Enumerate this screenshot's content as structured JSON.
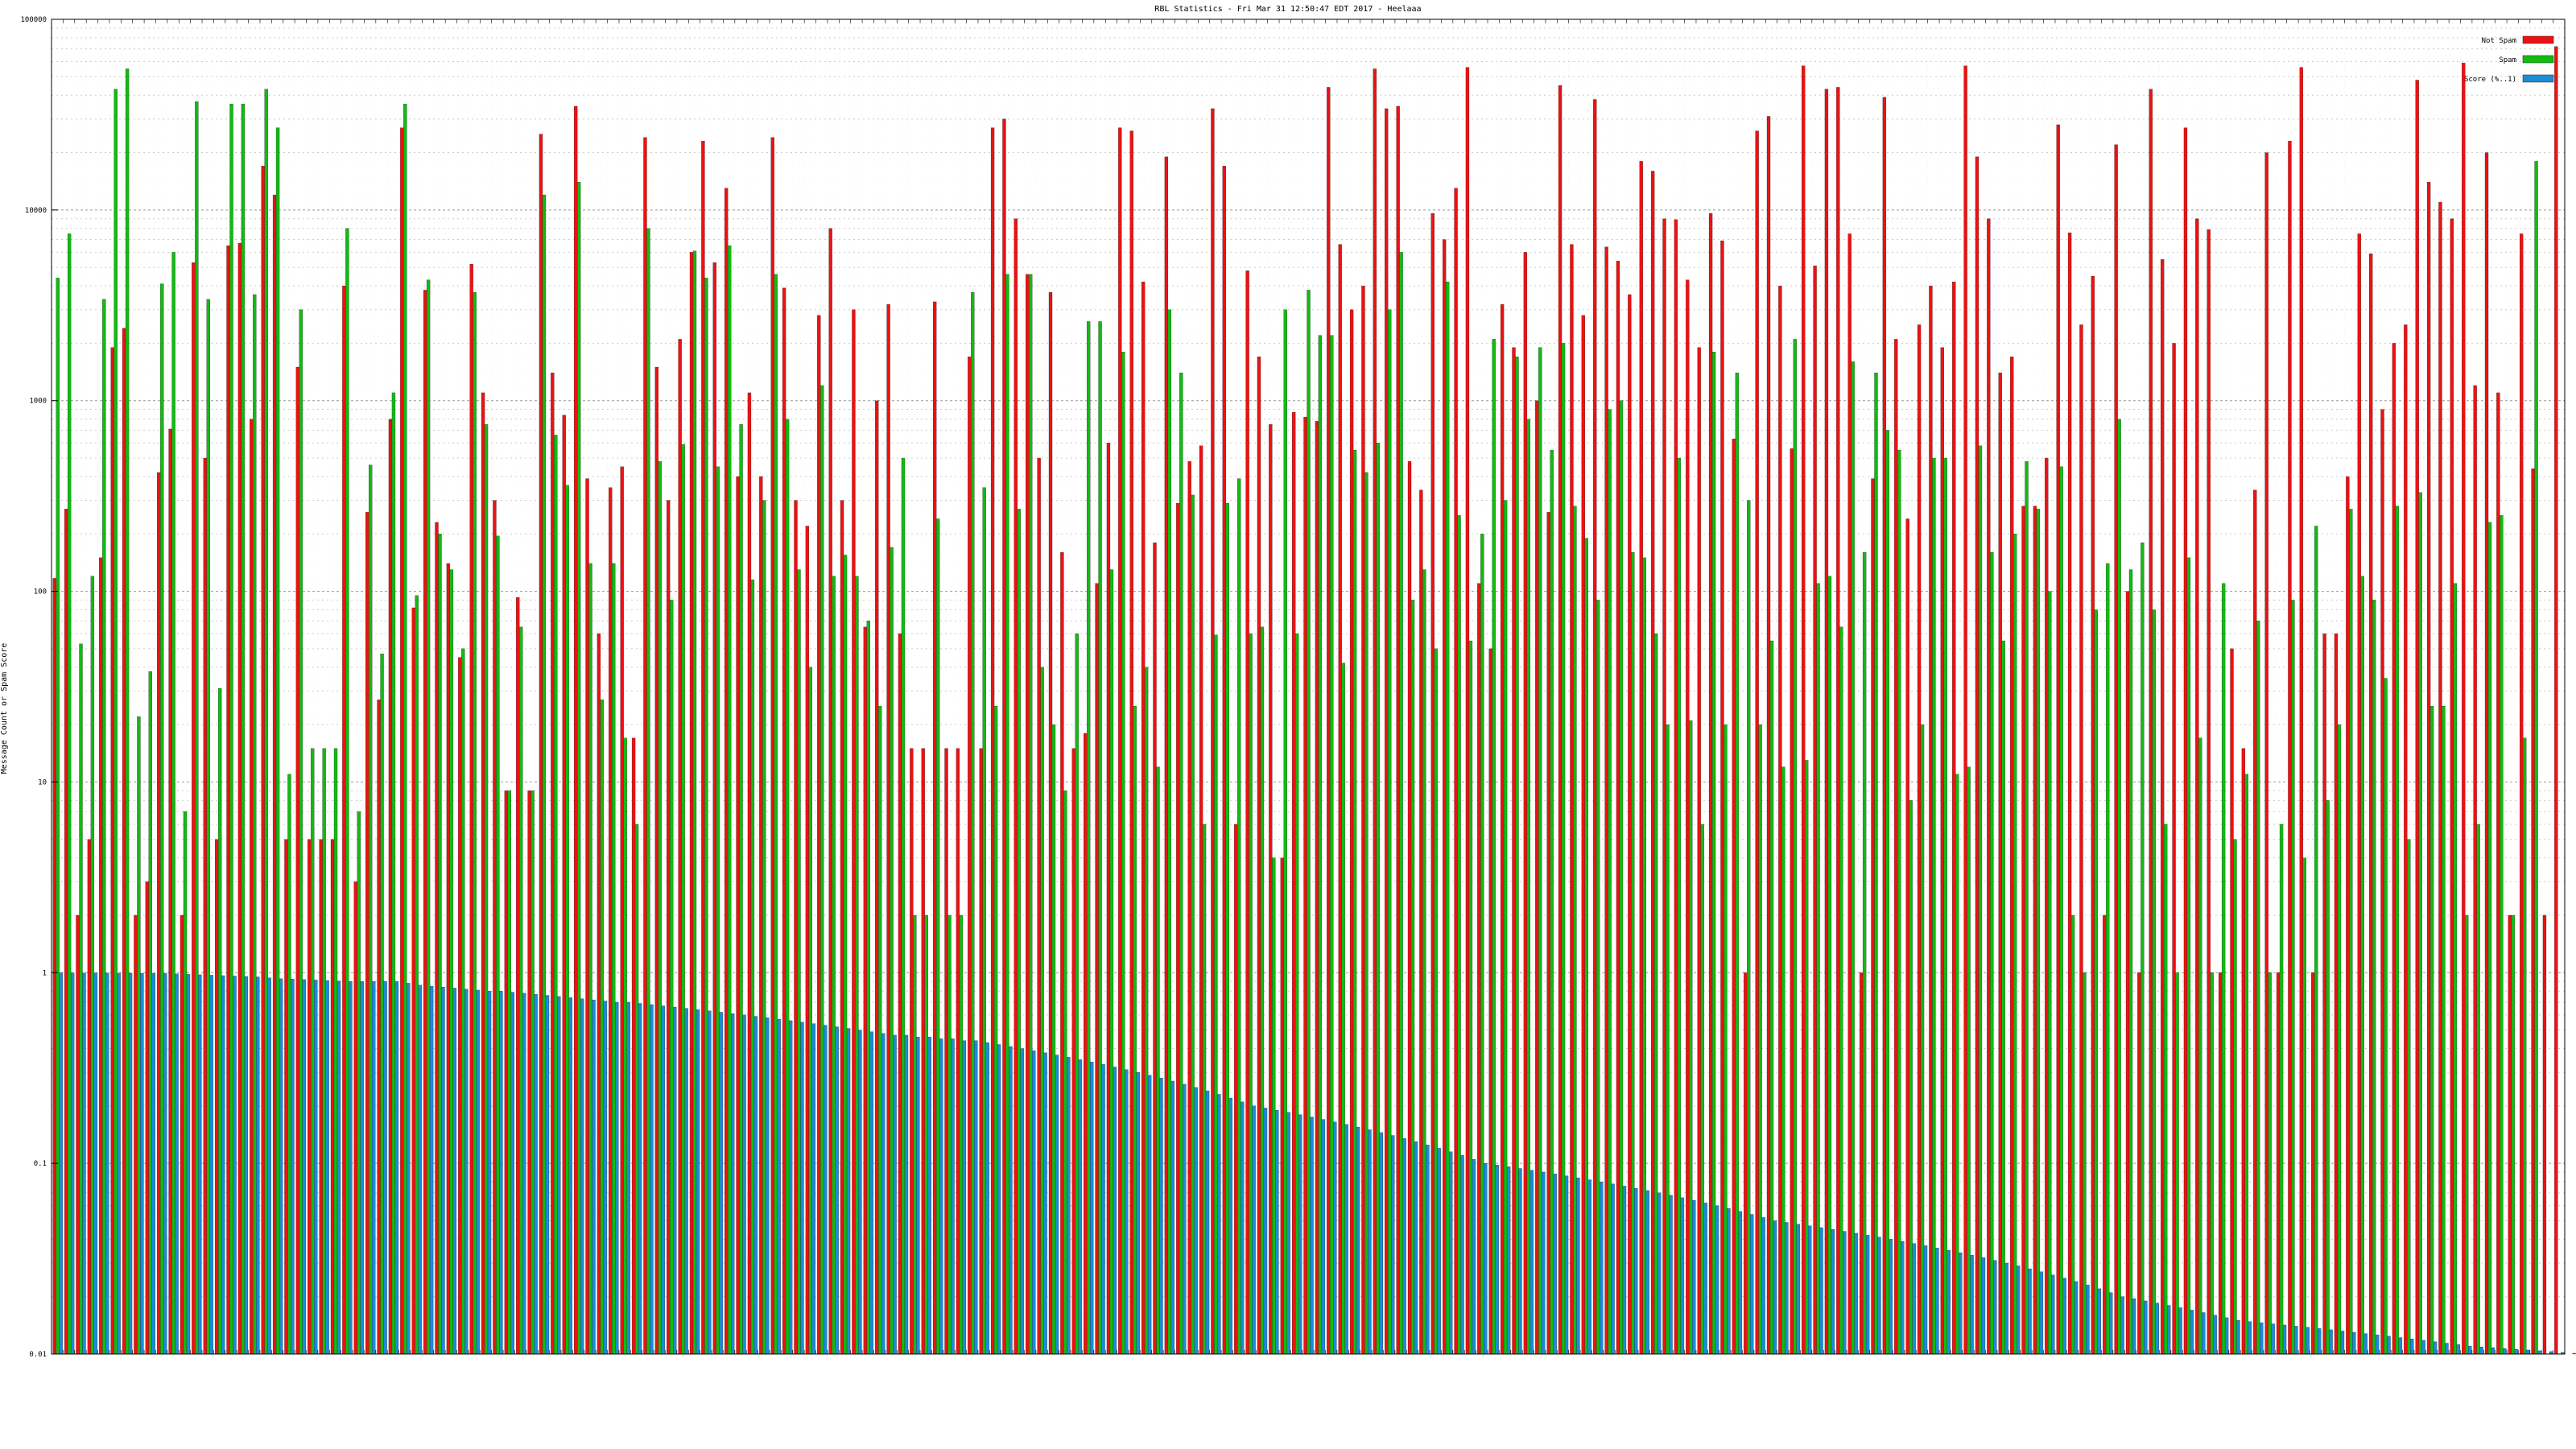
{
  "chart_data": {
    "type": "bar",
    "title": "RBL Statistics - Fri Mar 31 12:50:47 EDT 2017 - Heelaaa",
    "ylabel": "Message Count or Spam Score",
    "yscale": "log",
    "ylim": [
      0.01,
      100000
    ],
    "yticks": [
      0.01,
      0.1,
      1,
      10,
      100,
      1000,
      10000,
      100000
    ],
    "ytick_labels": [
      "0.01",
      "0.1",
      "1",
      "10",
      "100",
      "1000",
      "10000",
      "100000"
    ],
    "grid": true,
    "legend_position": "top-right",
    "colors": {
      "Not Spam": "#ee1111",
      "Spam": "#11bb11",
      "Score (%..1)": "#1a8cd8"
    },
    "series": [
      {
        "name": "Not Spam",
        "values": [
          117,
          270,
          2,
          5,
          150,
          1900,
          2400,
          2,
          3,
          420,
          710,
          2,
          5300,
          500,
          5,
          6500,
          6700,
          800,
          17000,
          12000,
          5,
          1500,
          5,
          5,
          5,
          4000,
          3,
          260,
          27,
          800,
          27000,
          82,
          3800,
          230,
          140,
          45,
          5200,
          1100,
          300,
          9,
          93,
          9,
          25000,
          1400,
          840,
          35000,
          390,
          60,
          350,
          450,
          17,
          24000,
          1500,
          300,
          2100,
          6000,
          23000,
          5300,
          13000,
          400,
          1100,
          400,
          24000,
          3900,
          300,
          220,
          2800,
          8000,
          300,
          3000,
          65,
          1000,
          3200,
          60,
          15,
          15,
          3300,
          15,
          15,
          1700,
          15,
          27000,
          30000,
          9000,
          4600,
          500,
          3700,
          160,
          15,
          18,
          110,
          600,
          27000,
          26000,
          4200,
          180,
          19000,
          290,
          480,
          580,
          34000,
          17000,
          6,
          4800,
          1700,
          750,
          4,
          870,
          820,
          780,
          44000,
          6600,
          3000,
          4000,
          55000,
          34000,
          35000,
          480,
          340,
          9600,
          7000,
          13000,
          56000,
          110,
          50,
          3200,
          1900,
          6000,
          1000,
          260,
          45000,
          6600,
          2800,
          38000,
          6400,
          5400,
          3600,
          18000,
          16000,
          9000,
          8900,
          4300,
          1900,
          9600,
          6900,
          630,
          1,
          26000,
          31000,
          4000,
          560,
          57000,
          5100,
          43000,
          44000,
          7500,
          1,
          390,
          39000,
          2100,
          240,
          2500,
          4000,
          1900,
          4200,
          57000,
          19000,
          9000,
          1400,
          1700,
          280,
          280,
          500,
          28000,
          7600,
          2500,
          4500,
          2,
          22000,
          100,
          1,
          43000,
          5500,
          2000,
          27000,
          9000,
          7900,
          1,
          50,
          15,
          340,
          20000,
          1,
          23000,
          56000,
          1,
          60,
          60,
          400,
          7500,
          5900,
          900,
          2000,
          2500,
          48000,
          14000,
          11000,
          9000,
          59000,
          1200,
          20000,
          1100,
          2,
          7500,
          440,
          2,
          72000
        ]
      },
      {
        "name": "Spam",
        "values": [
          4400,
          7500,
          53,
          120,
          3400,
          43000,
          55000,
          22,
          38,
          4100,
          6000,
          7,
          37000,
          3400,
          31,
          36000,
          36000,
          3600,
          43000,
          27000,
          11,
          3000,
          15,
          15,
          15,
          8000,
          7,
          460,
          47,
          1100,
          36000,
          95,
          4300,
          200,
          130,
          50,
          3700,
          750,
          195,
          9,
          65,
          9,
          12000,
          660,
          360,
          14000,
          140,
          27,
          140,
          17,
          6,
          8000,
          480,
          90,
          590,
          6100,
          4400,
          450,
          6500,
          750,
          115,
          300,
          4600,
          800,
          130,
          40,
          1200,
          120,
          155,
          120,
          70,
          25,
          170,
          500,
          2,
          2,
          240,
          2,
          2,
          3700,
          350,
          25,
          4600,
          270,
          4600,
          40,
          20,
          9,
          60,
          2600,
          2600,
          130,
          1800,
          25,
          40,
          12,
          3000,
          1400,
          320,
          6,
          59,
          290,
          390,
          60,
          65,
          4,
          3000,
          60,
          3800,
          2200,
          2200,
          42,
          550,
          420,
          600,
          3000,
          6000,
          90,
          130,
          50,
          4200,
          250,
          55,
          200,
          2100,
          300,
          1700,
          800,
          1900,
          550,
          2000,
          280,
          190,
          90,
          900,
          1000,
          160,
          150,
          60,
          20,
          500,
          21,
          6,
          1800,
          20,
          1400,
          300,
          20,
          55,
          12,
          2100,
          13,
          110,
          120,
          65,
          1600,
          160,
          1400,
          700,
          550,
          8,
          20,
          500,
          500,
          11,
          12,
          580,
          160,
          55,
          200,
          480,
          270,
          100,
          450,
          2,
          1,
          80,
          140,
          800,
          130,
          180,
          80,
          6,
          1,
          150,
          17,
          1,
          110,
          5,
          11,
          70,
          1,
          6,
          90,
          4,
          220,
          8,
          20,
          270,
          120,
          90,
          35,
          280,
          5,
          330,
          25,
          25,
          110,
          2,
          6,
          230,
          250,
          2,
          17,
          18000
        ]
      },
      {
        "name": "Score (%..1)",
        "values": [
          0.999,
          0.998,
          0.997,
          0.996,
          0.995,
          0.994,
          0.993,
          0.992,
          0.991,
          0.99,
          0.985,
          0.98,
          0.975,
          0.97,
          0.965,
          0.96,
          0.955,
          0.95,
          0.94,
          0.93,
          0.925,
          0.92,
          0.915,
          0.91,
          0.905,
          0.9,
          0.9,
          0.9,
          0.9,
          0.9,
          0.88,
          0.86,
          0.85,
          0.84,
          0.83,
          0.82,
          0.81,
          0.8,
          0.8,
          0.79,
          0.78,
          0.77,
          0.76,
          0.75,
          0.74,
          0.73,
          0.72,
          0.71,
          0.7,
          0.7,
          0.69,
          0.68,
          0.67,
          0.66,
          0.65,
          0.64,
          0.63,
          0.62,
          0.61,
          0.6,
          0.59,
          0.58,
          0.57,
          0.56,
          0.55,
          0.54,
          0.53,
          0.52,
          0.51,
          0.5,
          0.49,
          0.48,
          0.47,
          0.47,
          0.46,
          0.46,
          0.45,
          0.45,
          0.44,
          0.44,
          0.43,
          0.42,
          0.41,
          0.4,
          0.39,
          0.38,
          0.37,
          0.36,
          0.35,
          0.34,
          0.33,
          0.32,
          0.31,
          0.3,
          0.29,
          0.28,
          0.27,
          0.26,
          0.25,
          0.24,
          0.23,
          0.22,
          0.21,
          0.2,
          0.195,
          0.19,
          0.185,
          0.18,
          0.175,
          0.17,
          0.165,
          0.16,
          0.155,
          0.15,
          0.145,
          0.14,
          0.135,
          0.13,
          0.125,
          0.12,
          0.115,
          0.11,
          0.105,
          0.1,
          0.098,
          0.096,
          0.094,
          0.092,
          0.09,
          0.088,
          0.086,
          0.084,
          0.082,
          0.08,
          0.078,
          0.076,
          0.074,
          0.072,
          0.07,
          0.068,
          0.066,
          0.064,
          0.062,
          0.06,
          0.058,
          0.056,
          0.054,
          0.052,
          0.05,
          0.049,
          0.048,
          0.047,
          0.046,
          0.045,
          0.044,
          0.043,
          0.042,
          0.041,
          0.04,
          0.039,
          0.038,
          0.037,
          0.036,
          0.035,
          0.034,
          0.033,
          0.032,
          0.031,
          0.03,
          0.029,
          0.028,
          0.027,
          0.026,
          0.025,
          0.024,
          0.023,
          0.022,
          0.021,
          0.02,
          0.0195,
          0.019,
          0.0185,
          0.018,
          0.0175,
          0.017,
          0.0165,
          0.016,
          0.0155,
          0.015,
          0.0148,
          0.0146,
          0.0144,
          0.0142,
          0.014,
          0.0138,
          0.0136,
          0.0134,
          0.0132,
          0.013,
          0.0128,
          0.0126,
          0.0124,
          0.0122,
          0.012,
          0.0118,
          0.0116,
          0.0114,
          0.0112,
          0.011,
          0.0109,
          0.0108,
          0.0107,
          0.0106,
          0.0105,
          0.0104,
          0.0103,
          0.0102,
          0.0101,
          0.0101,
          0.01005,
          0.01003,
          0.01002,
          0.01001,
          0.0102
        ]
      }
    ]
  }
}
